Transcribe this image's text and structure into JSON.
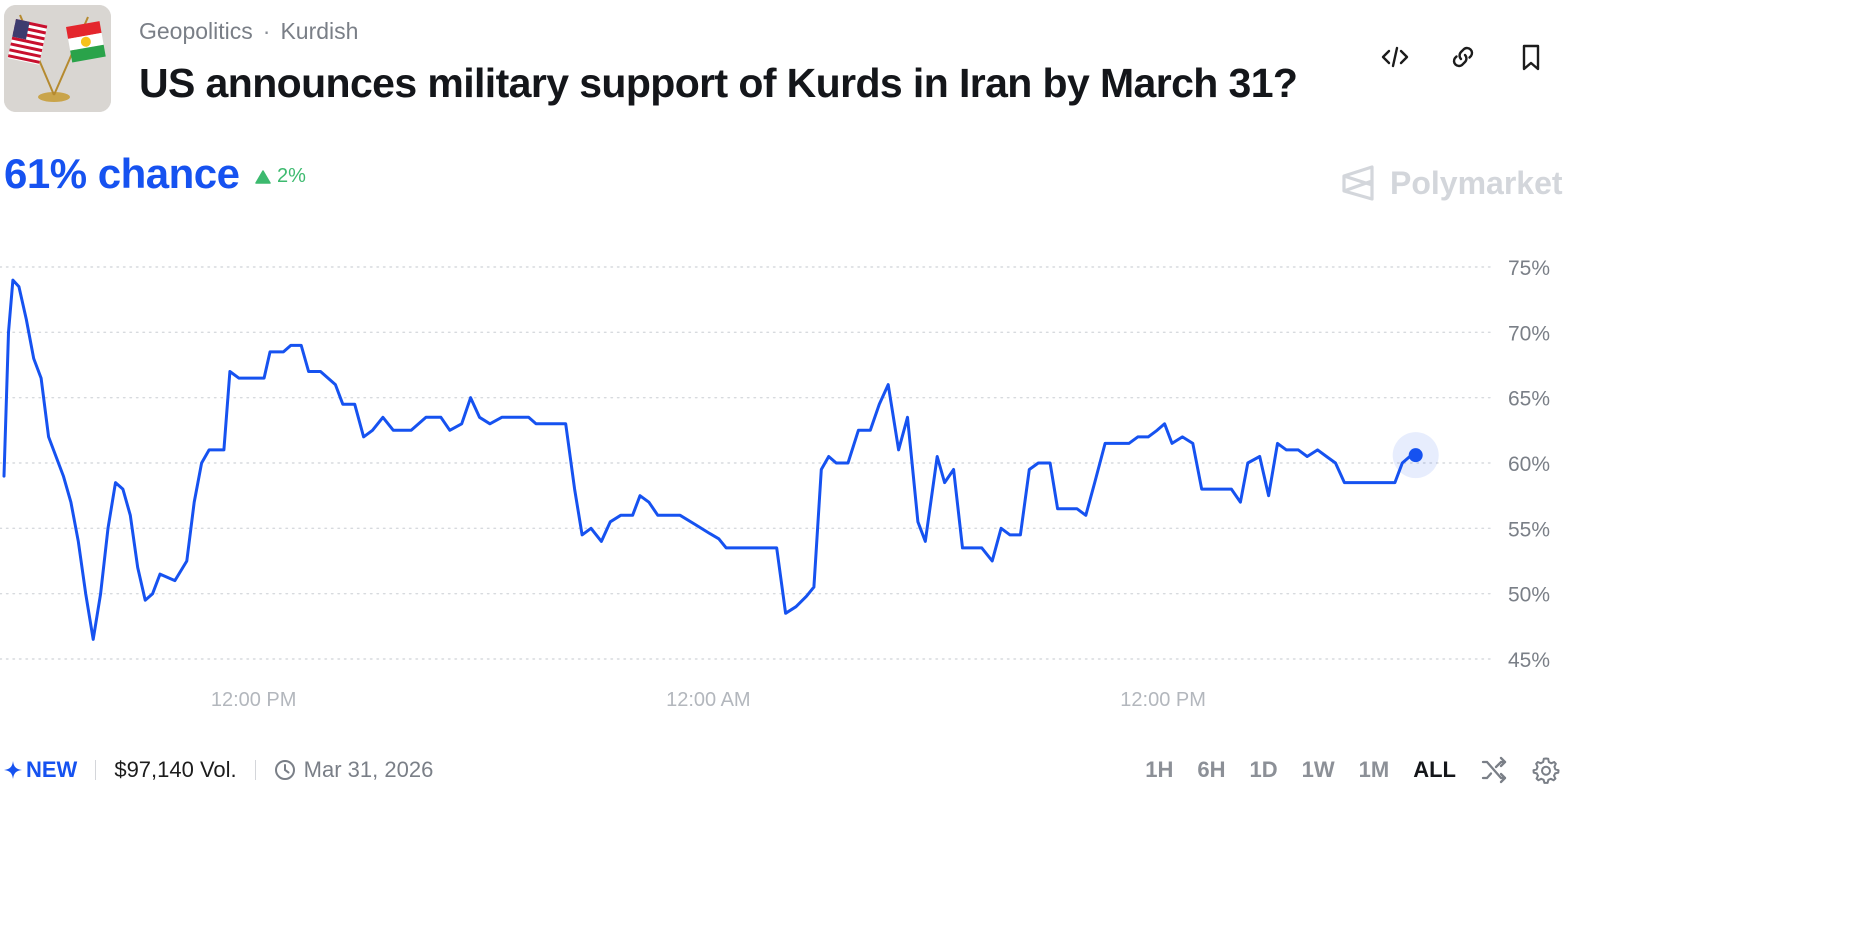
{
  "header": {
    "breadcrumb": [
      "Geopolitics",
      "Kurdish"
    ],
    "breadcrumb_separator": "·",
    "title": "US announces military support of Kurds in Iran by March 31?",
    "actions": [
      "embed-code-icon",
      "link-icon",
      "bookmark-icon"
    ]
  },
  "summary": {
    "chance": "61% chance",
    "delta": "2%",
    "delta_direction": "up",
    "delta_color": "#3dba6f"
  },
  "brand": {
    "name": "Polymarket"
  },
  "footer": {
    "badge": "NEW",
    "volume": "$97,140 Vol.",
    "end_date": "Mar 31, 2026",
    "ranges": [
      "1H",
      "6H",
      "1D",
      "1W",
      "1M",
      "ALL"
    ],
    "active_range": "ALL"
  },
  "colors": {
    "accent": "#1652f0",
    "muted": "#7a7f87",
    "grid": "#d7dade"
  },
  "chart_data": {
    "type": "line",
    "y_ticks": [
      "75%",
      "70%",
      "65%",
      "60%",
      "55%",
      "50%",
      "45%"
    ],
    "x_ticks": [
      "12:00 PM",
      "12:00 AM",
      "12:00 PM"
    ],
    "ylim": [
      45,
      75
    ],
    "x_range": [
      0,
      100
    ],
    "x_tick_positions": [
      16.8,
      47.4,
      78.0
    ],
    "series": [
      {
        "values": [
          [
            0,
            59
          ],
          [
            0.3,
            70
          ],
          [
            0.6,
            74
          ],
          [
            1.0,
            73.5
          ],
          [
            1.5,
            71
          ],
          [
            2.0,
            68
          ],
          [
            2.5,
            66.5
          ],
          [
            3.0,
            62
          ],
          [
            3.5,
            60.5
          ],
          [
            4.0,
            59
          ],
          [
            4.5,
            57
          ],
          [
            5.0,
            54
          ],
          [
            5.5,
            50
          ],
          [
            6.0,
            46.5
          ],
          [
            6.5,
            50
          ],
          [
            7.0,
            55
          ],
          [
            7.5,
            58.5
          ],
          [
            8.0,
            58
          ],
          [
            8.5,
            56
          ],
          [
            9.0,
            52
          ],
          [
            9.5,
            49.5
          ],
          [
            10.0,
            50
          ],
          [
            10.5,
            51.5
          ],
          [
            11.5,
            51
          ],
          [
            12.3,
            52.5
          ],
          [
            12.8,
            57
          ],
          [
            13.3,
            60
          ],
          [
            13.8,
            61
          ],
          [
            14.8,
            61
          ],
          [
            15.2,
            67
          ],
          [
            15.8,
            66.5
          ],
          [
            17.5,
            66.5
          ],
          [
            17.9,
            68.5
          ],
          [
            18.8,
            68.5
          ],
          [
            19.3,
            69
          ],
          [
            20.0,
            69
          ],
          [
            20.5,
            67
          ],
          [
            21.3,
            67
          ],
          [
            22.3,
            66
          ],
          [
            22.8,
            64.5
          ],
          [
            23.6,
            64.5
          ],
          [
            24.2,
            62
          ],
          [
            24.8,
            62.5
          ],
          [
            25.5,
            63.5
          ],
          [
            26.2,
            62.5
          ],
          [
            27.4,
            62.5
          ],
          [
            28.4,
            63.5
          ],
          [
            29.4,
            63.5
          ],
          [
            30.0,
            62.5
          ],
          [
            30.8,
            63
          ],
          [
            31.4,
            65
          ],
          [
            32.0,
            63.5
          ],
          [
            32.7,
            63
          ],
          [
            33.5,
            63.5
          ],
          [
            35.3,
            63.5
          ],
          [
            35.8,
            63
          ],
          [
            37.8,
            63
          ],
          [
            38.4,
            58
          ],
          [
            38.9,
            54.5
          ],
          [
            39.5,
            55
          ],
          [
            40.2,
            54
          ],
          [
            40.8,
            55.5
          ],
          [
            41.5,
            56
          ],
          [
            42.3,
            56
          ],
          [
            42.8,
            57.5
          ],
          [
            43.4,
            57
          ],
          [
            44.0,
            56
          ],
          [
            45.5,
            56
          ],
          [
            46.5,
            55.3
          ],
          [
            47.5,
            54.6
          ],
          [
            48.1,
            54.2
          ],
          [
            48.6,
            53.5
          ],
          [
            52.0,
            53.5
          ],
          [
            52.6,
            48.5
          ],
          [
            53.3,
            49
          ],
          [
            54.0,
            49.8
          ],
          [
            54.5,
            50.5
          ],
          [
            55.0,
            59.5
          ],
          [
            55.5,
            60.5
          ],
          [
            56.0,
            60
          ],
          [
            56.8,
            60
          ],
          [
            57.5,
            62.5
          ],
          [
            58.3,
            62.5
          ],
          [
            58.9,
            64.5
          ],
          [
            59.5,
            66
          ],
          [
            60.2,
            61
          ],
          [
            60.8,
            63.5
          ],
          [
            61.5,
            55.5
          ],
          [
            62.0,
            54
          ],
          [
            62.8,
            60.5
          ],
          [
            63.3,
            58.5
          ],
          [
            63.9,
            59.5
          ],
          [
            64.5,
            53.5
          ],
          [
            65.8,
            53.5
          ],
          [
            66.5,
            52.5
          ],
          [
            67.1,
            55
          ],
          [
            67.7,
            54.5
          ],
          [
            68.4,
            54.5
          ],
          [
            69.0,
            59.5
          ],
          [
            69.6,
            60
          ],
          [
            70.4,
            60
          ],
          [
            70.9,
            56.5
          ],
          [
            72.2,
            56.5
          ],
          [
            72.8,
            56
          ],
          [
            73.4,
            58.5
          ],
          [
            74.1,
            61.5
          ],
          [
            75.7,
            61.5
          ],
          [
            76.3,
            62
          ],
          [
            77.0,
            62
          ],
          [
            77.6,
            62.5
          ],
          [
            78.1,
            63
          ],
          [
            78.6,
            61.5
          ],
          [
            79.3,
            62
          ],
          [
            80.0,
            61.5
          ],
          [
            80.6,
            58
          ],
          [
            82.6,
            58
          ],
          [
            83.2,
            57
          ],
          [
            83.7,
            60
          ],
          [
            84.5,
            60.5
          ],
          [
            85.1,
            57.5
          ],
          [
            85.7,
            61.5
          ],
          [
            86.3,
            61
          ],
          [
            87.1,
            61
          ],
          [
            87.7,
            60.5
          ],
          [
            88.4,
            61
          ],
          [
            89.0,
            60.5
          ],
          [
            89.6,
            60
          ],
          [
            90.2,
            58.5
          ],
          [
            93.6,
            58.5
          ],
          [
            94.1,
            60
          ],
          [
            94.6,
            60.5
          ],
          [
            95.0,
            60.6
          ]
        ]
      }
    ]
  }
}
